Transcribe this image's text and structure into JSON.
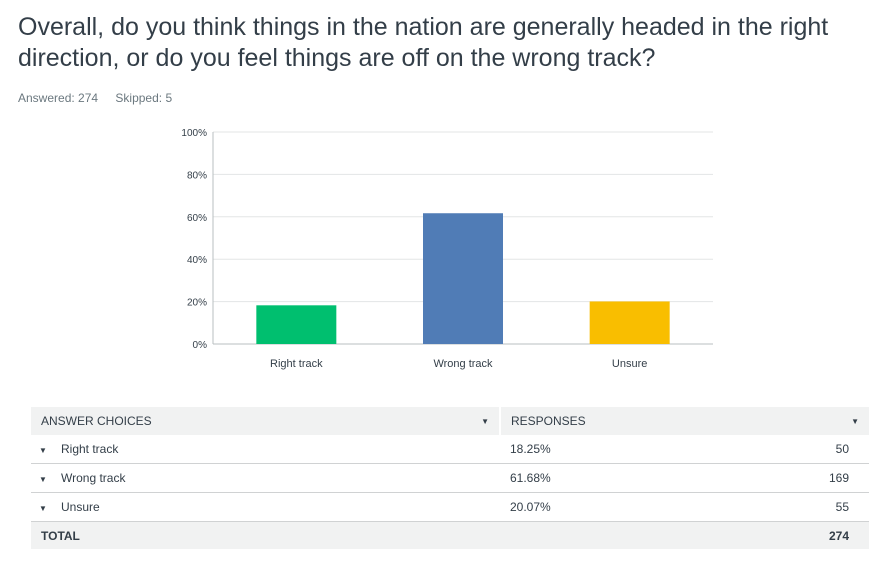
{
  "question": {
    "title": "Overall, do you think things in the nation are generally headed in the right direction, or do you feel things are off on the wrong track?",
    "answered_label": "Answered: 274",
    "skipped_label": "Skipped: 5"
  },
  "chart_data": {
    "type": "bar",
    "categories": [
      "Right track",
      "Wrong track",
      "Unsure"
    ],
    "values": [
      18.25,
      61.68,
      20.07
    ],
    "colors": [
      "#00bf6f",
      "#507cb6",
      "#f9be00"
    ],
    "ylim": [
      0,
      100
    ],
    "yticks": [
      "0%",
      "20%",
      "40%",
      "60%",
      "80%",
      "100%"
    ],
    "grid": true
  },
  "table": {
    "header_choices": "ANSWER CHOICES",
    "header_responses": "RESPONSES",
    "rows": [
      {
        "label": "Right track",
        "percent": "18.25%",
        "count": "50"
      },
      {
        "label": "Wrong track",
        "percent": "61.68%",
        "count": "169"
      },
      {
        "label": "Unsure",
        "percent": "20.07%",
        "count": "55"
      }
    ],
    "total_label": "TOTAL",
    "total_count": "274"
  }
}
